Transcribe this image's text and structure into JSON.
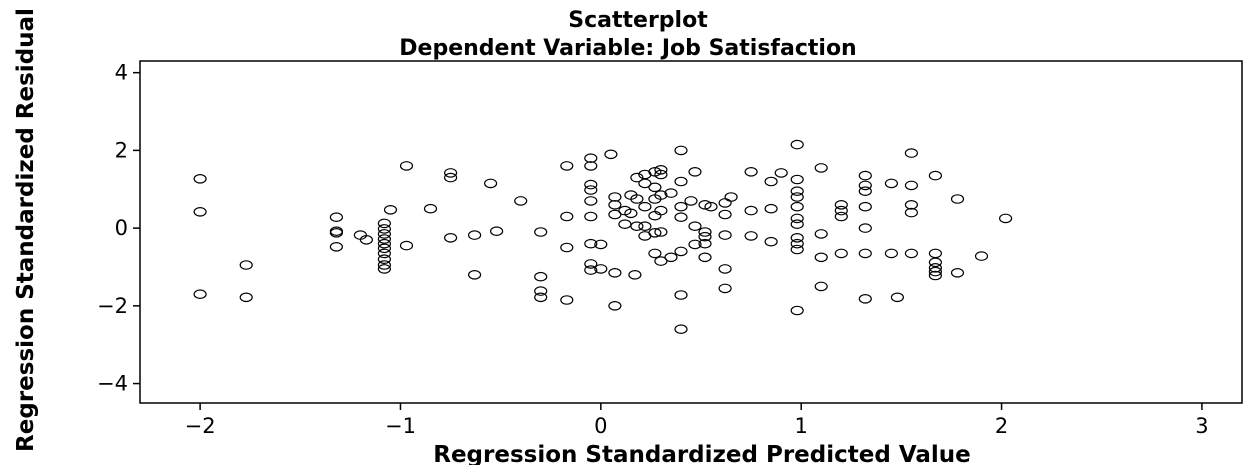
{
  "chart_data": {
    "type": "scatter",
    "title": "Scatterplot",
    "subtitle": "Dependent Variable: Job Satisfaction",
    "xlabel": "Regression Standardized Predicted Value",
    "ylabel": "Regression Standardized Residual",
    "xlim": [
      -2.3,
      3.2
    ],
    "ylim": [
      -4.5,
      4.3
    ],
    "xticks": [
      -2,
      -1,
      0,
      1,
      2,
      3
    ],
    "yticks": [
      -4,
      -2,
      0,
      2,
      4
    ],
    "xtick_labels": [
      "−2",
      "−1",
      "0",
      "1",
      "2",
      "3"
    ],
    "ytick_labels": [
      "−4",
      "−2",
      "0",
      "2",
      "4"
    ],
    "grid": false,
    "legend": "none",
    "marker": "open-circle",
    "points": [
      [
        -2.0,
        1.27
      ],
      [
        -2.0,
        0.42
      ],
      [
        -2.0,
        -1.7
      ],
      [
        -1.77,
        -0.95
      ],
      [
        -1.77,
        -1.78
      ],
      [
        -1.32,
        0.28
      ],
      [
        -1.32,
        -0.08
      ],
      [
        -1.32,
        -0.12
      ],
      [
        -1.32,
        -0.48
      ],
      [
        -1.2,
        -0.18
      ],
      [
        -1.17,
        -0.3
      ],
      [
        -1.08,
        0.12
      ],
      [
        -1.08,
        -0.02
      ],
      [
        -1.08,
        -0.15
      ],
      [
        -1.08,
        -0.28
      ],
      [
        -1.08,
        -0.4
      ],
      [
        -1.08,
        -0.52
      ],
      [
        -1.08,
        -0.65
      ],
      [
        -1.08,
        -0.8
      ],
      [
        -1.08,
        -0.95
      ],
      [
        -1.08,
        -1.05
      ],
      [
        -1.05,
        0.47
      ],
      [
        -0.97,
        1.6
      ],
      [
        -0.97,
        -0.45
      ],
      [
        -0.85,
        0.5
      ],
      [
        -0.75,
        1.42
      ],
      [
        -0.75,
        1.3
      ],
      [
        -0.75,
        -0.25
      ],
      [
        -0.63,
        -0.18
      ],
      [
        -0.63,
        -1.2
      ],
      [
        -0.55,
        1.15
      ],
      [
        -0.52,
        -0.08
      ],
      [
        -0.4,
        0.7
      ],
      [
        -0.3,
        -0.1
      ],
      [
        -0.3,
        -1.25
      ],
      [
        -0.3,
        -1.62
      ],
      [
        -0.3,
        -1.78
      ],
      [
        -0.17,
        1.6
      ],
      [
        -0.17,
        0.3
      ],
      [
        -0.17,
        -0.5
      ],
      [
        -0.17,
        -1.85
      ],
      [
        -0.05,
        1.8
      ],
      [
        -0.05,
        1.6
      ],
      [
        -0.05,
        1.12
      ],
      [
        -0.05,
        0.98
      ],
      [
        -0.05,
        0.7
      ],
      [
        -0.05,
        0.3
      ],
      [
        -0.05,
        -0.4
      ],
      [
        -0.05,
        -0.92
      ],
      [
        -0.05,
        -1.08
      ],
      [
        0.0,
        -0.42
      ],
      [
        0.0,
        -1.05
      ],
      [
        0.05,
        1.9
      ],
      [
        0.07,
        0.8
      ],
      [
        0.07,
        0.6
      ],
      [
        0.07,
        0.35
      ],
      [
        0.07,
        -1.15
      ],
      [
        0.07,
        -2.0
      ],
      [
        0.12,
        0.45
      ],
      [
        0.12,
        0.1
      ],
      [
        0.15,
        0.85
      ],
      [
        0.15,
        0.38
      ],
      [
        0.17,
        -1.2
      ],
      [
        0.18,
        1.3
      ],
      [
        0.18,
        0.75
      ],
      [
        0.18,
        0.05
      ],
      [
        0.22,
        1.38
      ],
      [
        0.22,
        1.15
      ],
      [
        0.22,
        0.55
      ],
      [
        0.22,
        0.05
      ],
      [
        0.22,
        -0.2
      ],
      [
        0.27,
        1.45
      ],
      [
        0.27,
        1.05
      ],
      [
        0.27,
        0.75
      ],
      [
        0.27,
        0.32
      ],
      [
        0.27,
        -0.12
      ],
      [
        0.27,
        -0.65
      ],
      [
        0.3,
        1.5
      ],
      [
        0.3,
        1.38
      ],
      [
        0.3,
        0.85
      ],
      [
        0.3,
        0.45
      ],
      [
        0.3,
        -0.1
      ],
      [
        0.3,
        -0.85
      ],
      [
        0.35,
        0.9
      ],
      [
        0.35,
        -0.75
      ],
      [
        0.4,
        2.0
      ],
      [
        0.4,
        1.2
      ],
      [
        0.4,
        0.55
      ],
      [
        0.4,
        0.28
      ],
      [
        0.4,
        -0.6
      ],
      [
        0.4,
        -1.72
      ],
      [
        0.4,
        -2.6
      ],
      [
        0.45,
        0.7
      ],
      [
        0.47,
        1.45
      ],
      [
        0.47,
        0.05
      ],
      [
        0.47,
        -0.42
      ],
      [
        0.52,
        0.6
      ],
      [
        0.52,
        -0.1
      ],
      [
        0.52,
        -0.22
      ],
      [
        0.52,
        -0.4
      ],
      [
        0.52,
        -0.75
      ],
      [
        0.55,
        0.55
      ],
      [
        0.62,
        0.65
      ],
      [
        0.62,
        0.35
      ],
      [
        0.62,
        -0.18
      ],
      [
        0.62,
        -1.05
      ],
      [
        0.62,
        -1.55
      ],
      [
        0.65,
        0.8
      ],
      [
        0.75,
        1.45
      ],
      [
        0.75,
        0.45
      ],
      [
        0.75,
        -0.2
      ],
      [
        0.85,
        1.2
      ],
      [
        0.85,
        0.5
      ],
      [
        0.85,
        -0.35
      ],
      [
        0.9,
        1.42
      ],
      [
        0.98,
        2.15
      ],
      [
        0.98,
        1.25
      ],
      [
        0.98,
        0.95
      ],
      [
        0.98,
        0.8
      ],
      [
        0.98,
        0.55
      ],
      [
        0.98,
        0.25
      ],
      [
        0.98,
        0.1
      ],
      [
        0.98,
        -0.25
      ],
      [
        0.98,
        -0.4
      ],
      [
        0.98,
        -0.55
      ],
      [
        0.98,
        -2.12
      ],
      [
        1.1,
        1.55
      ],
      [
        1.1,
        -0.15
      ],
      [
        1.1,
        -0.75
      ],
      [
        1.1,
        -1.5
      ],
      [
        1.2,
        0.6
      ],
      [
        1.2,
        0.45
      ],
      [
        1.2,
        0.3
      ],
      [
        1.2,
        -0.65
      ],
      [
        1.32,
        1.35
      ],
      [
        1.32,
        1.1
      ],
      [
        1.32,
        0.95
      ],
      [
        1.32,
        0.55
      ],
      [
        1.32,
        0.0
      ],
      [
        1.32,
        -0.65
      ],
      [
        1.32,
        -1.82
      ],
      [
        1.45,
        1.15
      ],
      [
        1.45,
        -0.65
      ],
      [
        1.48,
        -1.78
      ],
      [
        1.55,
        1.93
      ],
      [
        1.55,
        1.1
      ],
      [
        1.55,
        0.6
      ],
      [
        1.55,
        0.4
      ],
      [
        1.55,
        -0.65
      ],
      [
        1.67,
        1.35
      ],
      [
        1.67,
        -0.65
      ],
      [
        1.67,
        -0.88
      ],
      [
        1.67,
        -1.02
      ],
      [
        1.67,
        -1.12
      ],
      [
        1.67,
        -1.22
      ],
      [
        1.78,
        0.75
      ],
      [
        1.78,
        -1.15
      ],
      [
        1.9,
        -0.72
      ],
      [
        2.02,
        0.25
      ]
    ]
  }
}
